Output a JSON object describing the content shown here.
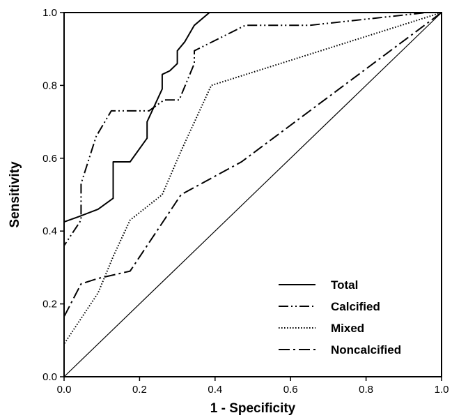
{
  "chart_data": {
    "type": "line",
    "title": "",
    "xlabel": "1 - Specificity",
    "ylabel": "Sensitivity",
    "xlim": [
      0.0,
      1.0
    ],
    "ylim": [
      0.0,
      1.0
    ],
    "xticks": [
      "0.0",
      "0.2",
      "0.4",
      "0.6",
      "0.8",
      "1.0"
    ],
    "yticks": [
      "0.0",
      "0.2",
      "0.4",
      "0.6",
      "0.8",
      "1.0"
    ],
    "grid": false,
    "legend_position": "bottom-right",
    "series": [
      {
        "name": "Total",
        "dash": "solid",
        "points": [
          [
            0.0,
            0.0
          ],
          [
            0.0,
            0.425
          ],
          [
            0.04,
            0.44
          ],
          [
            0.09,
            0.46
          ],
          [
            0.13,
            0.49
          ],
          [
            0.13,
            0.59
          ],
          [
            0.175,
            0.59
          ],
          [
            0.22,
            0.655
          ],
          [
            0.22,
            0.7
          ],
          [
            0.26,
            0.79
          ],
          [
            0.26,
            0.83
          ],
          [
            0.28,
            0.84
          ],
          [
            0.3,
            0.86
          ],
          [
            0.3,
            0.895
          ],
          [
            0.32,
            0.92
          ],
          [
            0.345,
            0.965
          ],
          [
            0.385,
            1.0
          ],
          [
            1.0,
            1.0
          ]
        ]
      },
      {
        "name": "Calcified",
        "dash": "dash-dot-dot",
        "points": [
          [
            0.0,
            0.0
          ],
          [
            0.0,
            0.36
          ],
          [
            0.045,
            0.43
          ],
          [
            0.045,
            0.53
          ],
          [
            0.085,
            0.66
          ],
          [
            0.125,
            0.73
          ],
          [
            0.225,
            0.73
          ],
          [
            0.265,
            0.76
          ],
          [
            0.305,
            0.76
          ],
          [
            0.345,
            0.86
          ],
          [
            0.345,
            0.895
          ],
          [
            0.48,
            0.965
          ],
          [
            0.65,
            0.965
          ],
          [
            0.96,
            1.0
          ],
          [
            1.0,
            1.0
          ]
        ]
      },
      {
        "name": "Mixed",
        "dash": "dotted",
        "points": [
          [
            0.0,
            0.0
          ],
          [
            0.0,
            0.09
          ],
          [
            0.045,
            0.16
          ],
          [
            0.09,
            0.23
          ],
          [
            0.13,
            0.33
          ],
          [
            0.175,
            0.43
          ],
          [
            0.26,
            0.5
          ],
          [
            0.31,
            0.62
          ],
          [
            0.39,
            0.8
          ],
          [
            1.0,
            1.0
          ]
        ]
      },
      {
        "name": "Noncalcified",
        "dash": "long-dash-dot",
        "points": [
          [
            0.0,
            0.0
          ],
          [
            0.0,
            0.165
          ],
          [
            0.045,
            0.255
          ],
          [
            0.09,
            0.27
          ],
          [
            0.175,
            0.29
          ],
          [
            0.22,
            0.36
          ],
          [
            0.31,
            0.5
          ],
          [
            0.47,
            0.59
          ],
          [
            1.0,
            1.0
          ]
        ]
      }
    ]
  }
}
